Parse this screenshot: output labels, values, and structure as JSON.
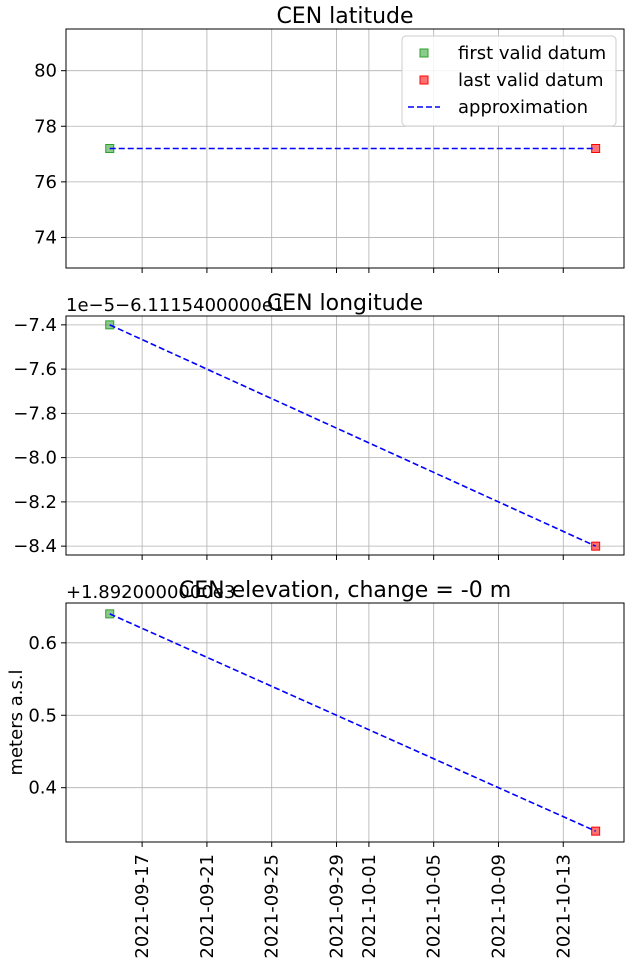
{
  "chart_data": [
    {
      "type": "line",
      "title": "CEN latitude",
      "offset_text": "",
      "ylabel": "",
      "ylim": [
        72.9,
        81.5
      ],
      "yticks": [
        74,
        76,
        78,
        80
      ],
      "ytick_labels": [
        "74",
        "76",
        "78",
        "80"
      ],
      "x": [
        "2021-09-15",
        "2021-10-15"
      ],
      "series": [
        {
          "name": "first valid datum",
          "x": [
            "2021-09-15"
          ],
          "values": [
            77.2
          ],
          "color": "#2ca02c",
          "marker": "square"
        },
        {
          "name": "last valid datum",
          "x": [
            "2021-10-15"
          ],
          "values": [
            77.2
          ],
          "color": "#ff0000",
          "marker": "square"
        },
        {
          "name": "approximation",
          "x": [
            "2021-09-15",
            "2021-10-15"
          ],
          "values": [
            77.2,
            77.2
          ],
          "color": "#0000ff",
          "style": "dashed"
        }
      ],
      "legend": "upper-right",
      "grid": true
    },
    {
      "type": "line",
      "title": "CEN longitude",
      "offset_text": "1e−5−6.1115400000e1",
      "ylabel": "",
      "ylim": [
        -8.44,
        -7.36
      ],
      "yticks": [
        -8.4,
        -8.2,
        -8.0,
        -7.8,
        -7.6,
        -7.4
      ],
      "ytick_labels": [
        "−8.4",
        "−8.2",
        "−8.0",
        "−7.8",
        "−7.6",
        "−7.4"
      ],
      "x": [
        "2021-09-15",
        "2021-10-15"
      ],
      "series": [
        {
          "name": "first valid datum",
          "x": [
            "2021-09-15"
          ],
          "values": [
            -7.4
          ],
          "color": "#2ca02c",
          "marker": "square"
        },
        {
          "name": "last valid datum",
          "x": [
            "2021-10-15"
          ],
          "values": [
            -8.4
          ],
          "color": "#ff0000",
          "marker": "square"
        },
        {
          "name": "approximation",
          "x": [
            "2021-09-15",
            "2021-10-15"
          ],
          "values": [
            -7.4,
            -8.4
          ],
          "color": "#0000ff",
          "style": "dashed"
        }
      ],
      "grid": true
    },
    {
      "type": "line",
      "title": "CEN elevation, change = -0 m",
      "offset_text": "+1.8920000000e3",
      "ylabel": "meters a.s.l",
      "ylim": [
        0.325,
        0.655
      ],
      "yticks": [
        0.4,
        0.5,
        0.6
      ],
      "ytick_labels": [
        "0.4",
        "0.5",
        "0.6"
      ],
      "x": [
        "2021-09-15",
        "2021-10-15"
      ],
      "series": [
        {
          "name": "first valid datum",
          "x": [
            "2021-09-15"
          ],
          "values": [
            0.64
          ],
          "color": "#2ca02c",
          "marker": "square"
        },
        {
          "name": "last valid datum",
          "x": [
            "2021-10-15"
          ],
          "values": [
            0.34
          ],
          "color": "#ff0000",
          "marker": "square"
        },
        {
          "name": "approximation",
          "x": [
            "2021-09-15",
            "2021-10-15"
          ],
          "values": [
            0.64,
            0.34
          ],
          "color": "#0000ff",
          "style": "dashed"
        }
      ],
      "xtick_labels": [
        "2021-09-17",
        "2021-09-21",
        "2021-09-25",
        "2021-09-29",
        "2021-10-01",
        "2021-10-05",
        "2021-10-09",
        "2021-10-13"
      ],
      "grid": true
    }
  ],
  "xaxis": {
    "xlim": [
      "2021-09-13",
      "2021-10-16"
    ],
    "ticks": [
      "2021-09-17",
      "2021-09-21",
      "2021-09-25",
      "2021-09-29",
      "2021-10-01",
      "2021-10-05",
      "2021-10-09",
      "2021-10-13"
    ]
  },
  "legend": {
    "entries": [
      "first valid datum",
      "last valid datum",
      "approximation"
    ]
  }
}
